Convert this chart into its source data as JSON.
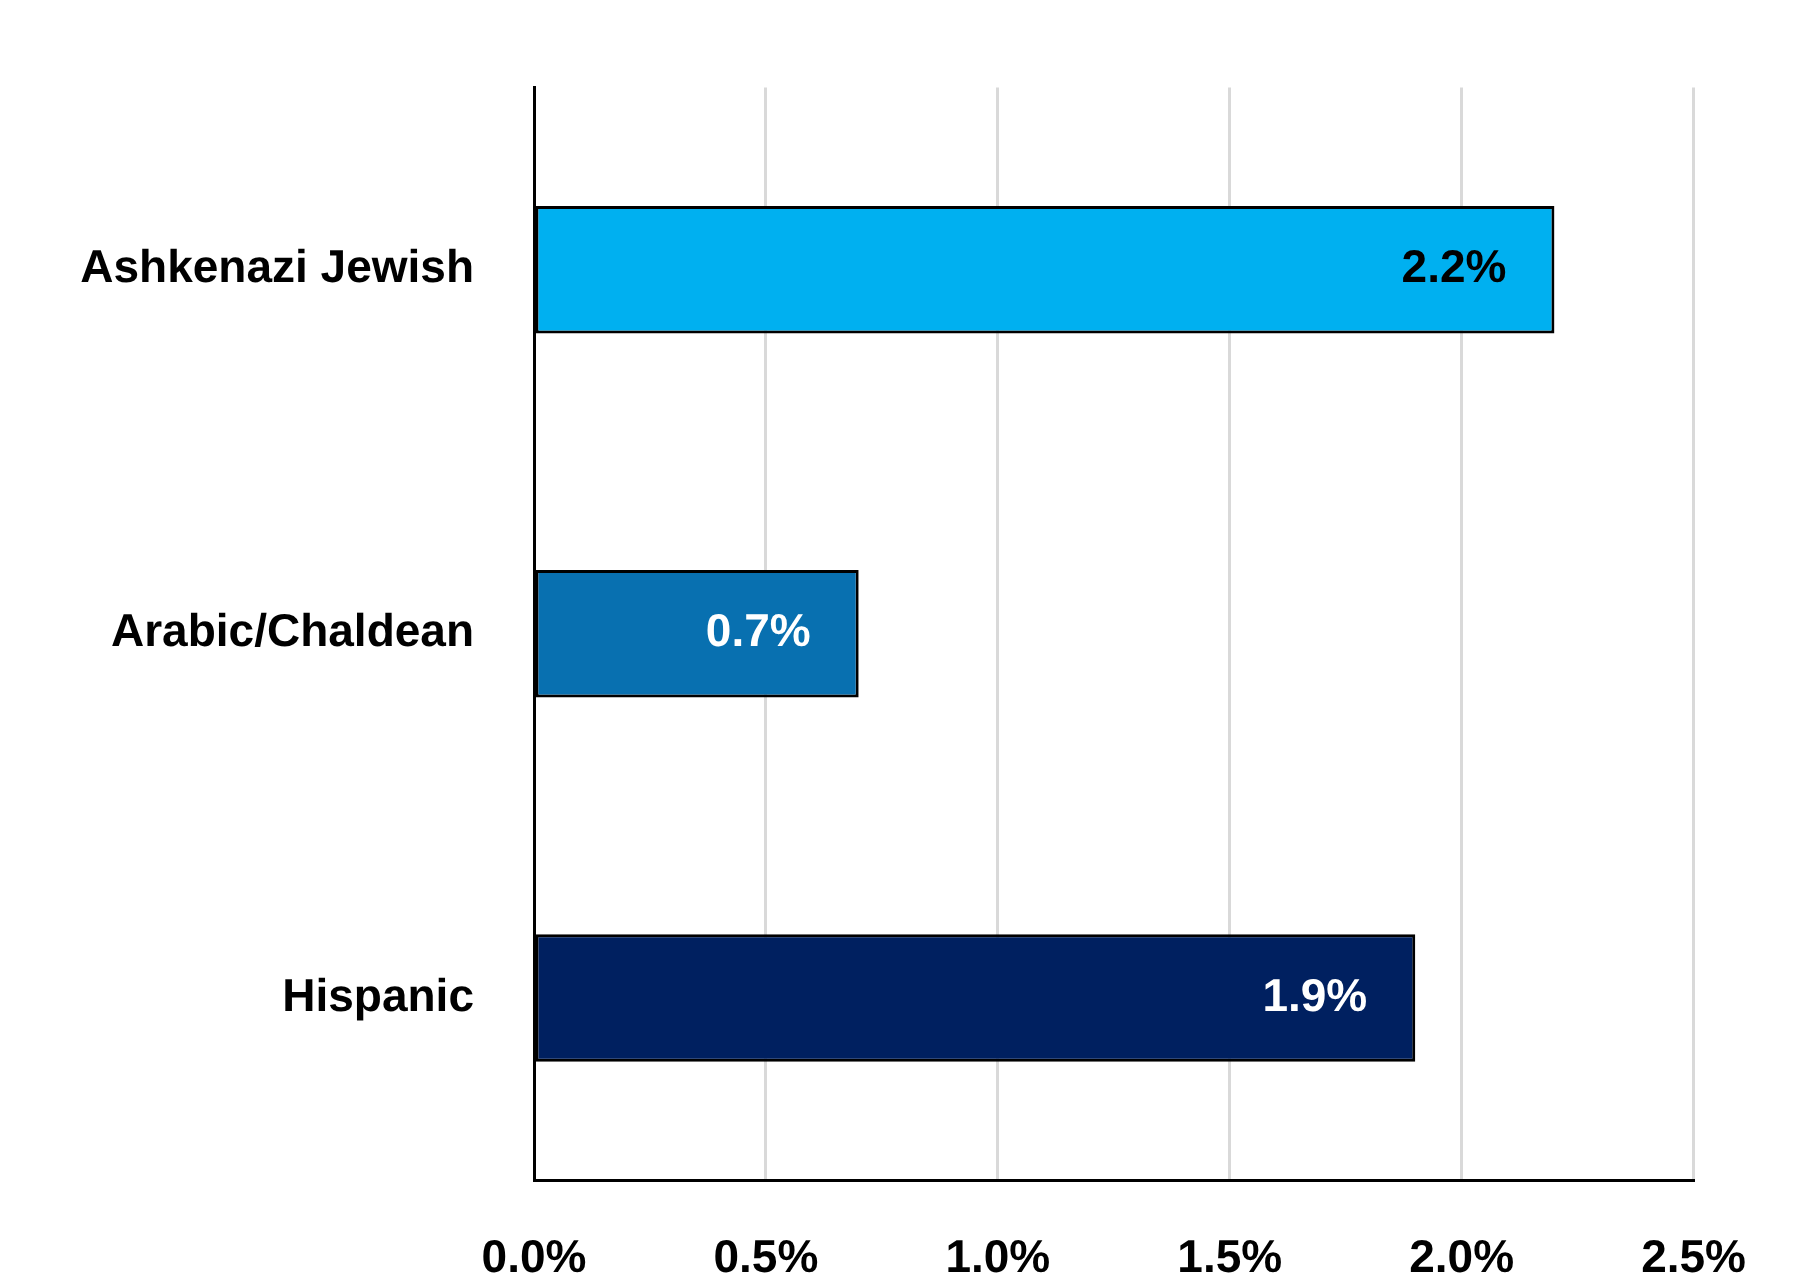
{
  "chart_data": {
    "type": "bar",
    "orientation": "horizontal",
    "categories": [
      "Ashkenazi Jewish",
      "Arabic/Chaldean",
      "Hispanic"
    ],
    "values": [
      2.2,
      0.7,
      1.9
    ],
    "colors": [
      "#00b0f0",
      "#0870b0",
      "#002060"
    ],
    "value_labels": [
      "2.2%",
      "0.7%",
      "1.9%"
    ],
    "xlim": [
      0,
      2.5
    ],
    "xticks": [
      {
        "value": 0,
        "label": "0.0%"
      },
      {
        "value": 0.5,
        "label": "0.5%"
      },
      {
        "value": 1,
        "label": "1.0%"
      },
      {
        "value": 1.5,
        "label": "1.5%"
      },
      {
        "value": 2,
        "label": "2.0%"
      },
      {
        "value": 2.5,
        "label": "2.5%"
      }
    ],
    "grid": "x",
    "legend": false
  }
}
